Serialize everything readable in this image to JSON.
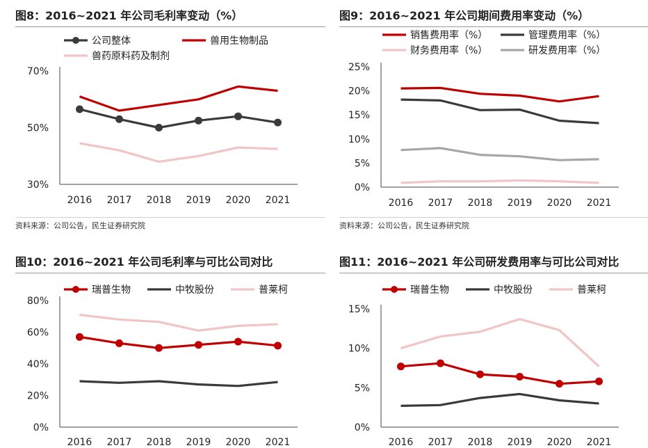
{
  "charts": [
    {
      "title": "图8：2016~2021 年公司毛利率变动（%）",
      "source": "资料来源：公司公告，民生证券研究院",
      "chart_data": {
        "type": "line",
        "categories": [
          "2016",
          "2017",
          "2018",
          "2019",
          "2020",
          "2021"
        ],
        "yticks": [
          "30%",
          "50%",
          "70%"
        ],
        "ylim": [
          30,
          70
        ],
        "series": [
          {
            "name": "公司整体",
            "color": "#3a3a3a",
            "marker": true,
            "values": [
              56.5,
              53.0,
              50.0,
              52.5,
              54.0,
              51.8
            ]
          },
          {
            "name": "兽用生物制品",
            "color": "#c00000",
            "marker": false,
            "values": [
              61.0,
              56.0,
              58.0,
              60.0,
              64.5,
              63.0
            ]
          },
          {
            "name": "兽药原料药及制剂",
            "color": "#f2c4c4",
            "marker": false,
            "values": [
              44.5,
              42.0,
              38.0,
              40.0,
              43.0,
              42.5
            ]
          }
        ]
      }
    },
    {
      "title": "图9：2016~2021 年公司期间费用率变动（%）",
      "source": "资料来源：公司公告，民生证券研究院",
      "chart_data": {
        "type": "line",
        "categories": [
          "2016",
          "2017",
          "2018",
          "2019",
          "2020",
          "2021"
        ],
        "yticks": [
          "0%",
          "5%",
          "10%",
          "15%",
          "20%",
          "25%"
        ],
        "ylim": [
          0,
          25
        ],
        "series": [
          {
            "name": "销售费用率（%）",
            "color": "#c00000",
            "marker": false,
            "values": [
              20.5,
              20.6,
              19.4,
              19.0,
              17.8,
              18.9
            ]
          },
          {
            "name": "管理费用率（%）",
            "color": "#3a3a3a",
            "marker": false,
            "values": [
              18.2,
              18.0,
              16.0,
              16.1,
              13.8,
              13.3
            ]
          },
          {
            "name": "财务费用率（%）",
            "color": "#f2c4c4",
            "marker": false,
            "values": [
              0.9,
              1.2,
              1.2,
              1.4,
              1.2,
              0.9
            ]
          },
          {
            "name": "研发费用率（%）",
            "color": "#a6a6a6",
            "marker": false,
            "values": [
              7.7,
              8.1,
              6.7,
              6.4,
              5.6,
              5.8
            ]
          }
        ]
      }
    },
    {
      "title": "图10：2016~2021 年公司毛利率与可比公司对比",
      "source": "",
      "chart_data": {
        "type": "line",
        "categories": [
          "2016",
          "2017",
          "2018",
          "2019",
          "2020",
          "2021"
        ],
        "yticks": [
          "0%",
          "20%",
          "40%",
          "60%",
          "80%"
        ],
        "ylim": [
          0,
          80
        ],
        "series": [
          {
            "name": "瑞普生物",
            "color": "#c00000",
            "marker": true,
            "values": [
              57.0,
              53.0,
              50.0,
              52.0,
              54.0,
              51.5
            ]
          },
          {
            "name": "中牧股份",
            "color": "#3a3a3a",
            "marker": false,
            "values": [
              29.0,
              28.0,
              29.0,
              27.0,
              26.0,
              28.5
            ]
          },
          {
            "name": "普莱柯",
            "color": "#f2c4c4",
            "marker": false,
            "values": [
              71.0,
              68.0,
              66.5,
              61.0,
              64.0,
              65.0
            ]
          }
        ]
      }
    },
    {
      "title": "图11：2016~2021 年公司研发费用率与可比公司对比",
      "source": "",
      "chart_data": {
        "type": "line",
        "categories": [
          "2016",
          "2017",
          "2018",
          "2019",
          "2020",
          "2021"
        ],
        "yticks": [
          "0%",
          "5%",
          "10%",
          "15%"
        ],
        "ylim": [
          0,
          15
        ],
        "series": [
          {
            "name": "瑞普生物",
            "color": "#c00000",
            "marker": true,
            "values": [
              7.7,
              8.1,
              6.7,
              6.4,
              5.5,
              5.8
            ]
          },
          {
            "name": "中牧股份",
            "color": "#3a3a3a",
            "marker": false,
            "values": [
              2.7,
              2.8,
              3.7,
              4.2,
              3.4,
              3.0
            ]
          },
          {
            "name": "普莱柯",
            "color": "#f2c4c4",
            "marker": false,
            "values": [
              10.0,
              11.5,
              12.1,
              13.7,
              12.3,
              7.7
            ]
          }
        ]
      }
    }
  ]
}
